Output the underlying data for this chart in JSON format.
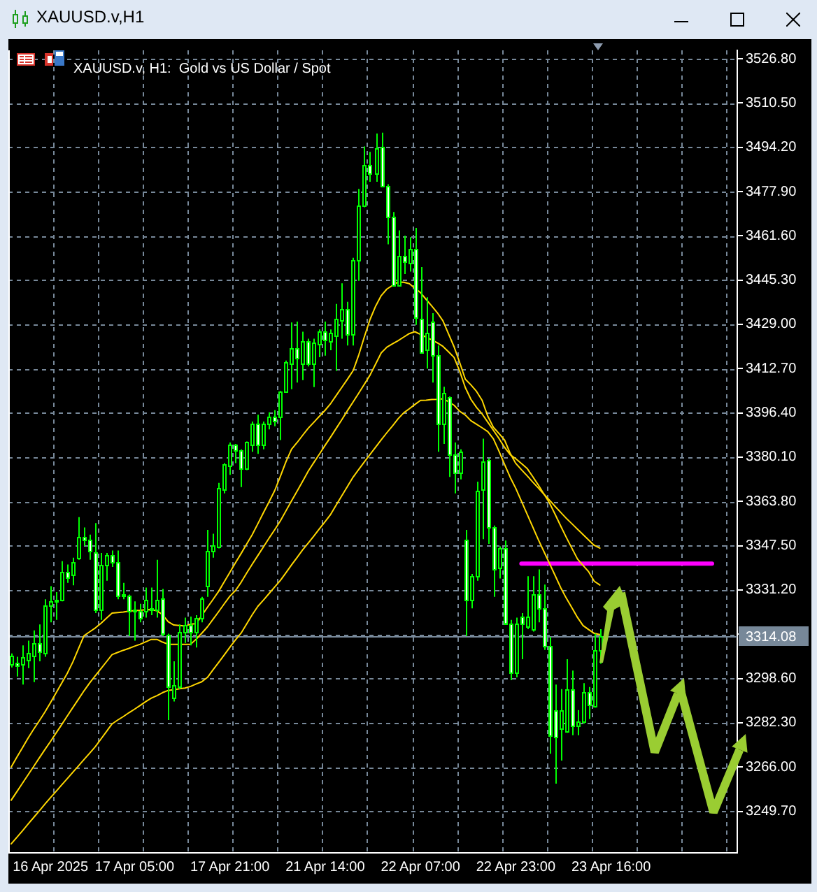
{
  "chart_data": {
    "type": "candlestick",
    "title": "XAUUSD.v,H1",
    "subtitle": "XAUUSD.v, H1:  Gold vs US Dollar / Spot",
    "categories": [
      null,
      null,
      null,
      null,
      null,
      null,
      null,
      "16 Apr 2025",
      null,
      null,
      null,
      null,
      null,
      null,
      null,
      null,
      null,
      null,
      null,
      null,
      null,
      null,
      "17 Apr 05:00",
      null,
      null,
      null,
      null,
      null,
      null,
      null,
      null,
      null,
      null,
      null,
      null,
      null,
      null,
      null,
      null,
      "17 Apr 21:00",
      null,
      null,
      null,
      null,
      null,
      null,
      null,
      null,
      null,
      null,
      null,
      null,
      null,
      null,
      null,
      null,
      "21 Apr 14:00",
      null,
      null,
      null,
      null,
      null,
      null,
      null,
      null,
      null,
      null,
      null,
      null,
      null,
      null,
      null,
      null,
      "22 Apr 07:00",
      null,
      null,
      null,
      null,
      null,
      null,
      null,
      null,
      null,
      null,
      null,
      null,
      null,
      null,
      null,
      null,
      "22 Apr 23:00",
      null,
      null,
      null,
      null,
      null,
      null,
      null,
      null,
      null,
      null,
      null,
      null,
      null,
      null,
      null,
      null,
      "23 Apr 16:00",
      null,
      null,
      null,
      null,
      null,
      null,
      null,
      null,
      null,
      null,
      null,
      null,
      null,
      null,
      null,
      null,
      null,
      null,
      null,
      null,
      null,
      null
    ],
    "ohlc": [
      [
        3303.7,
        3307.8,
        3302.7,
        3307.1
      ],
      [
        3304.4,
        3306.6,
        3299.3,
        3303.5
      ],
      [
        3304.0,
        3310.8,
        3296.4,
        3306.6
      ],
      [
        3305.7,
        3312.5,
        3302.4,
        3307.8
      ],
      [
        3307.1,
        3316.3,
        3297.3,
        3311.7
      ],
      [
        3311.7,
        3318.5,
        3304.9,
        3308.3
      ],
      [
        3307.8,
        3327.8,
        3306.6,
        3325.3
      ],
      [
        3325.3,
        3332.6,
        3319.3,
        3327.0
      ],
      [
        3327.8,
        3330.4,
        3320.2,
        3327.0
      ],
      [
        3327.8,
        3341.8,
        3327.0,
        3338.0
      ],
      [
        3338.0,
        3340.6,
        3333.8,
        3336.0
      ],
      [
        3336.7,
        3343.1,
        3332.9,
        3341.4
      ],
      [
        3343.1,
        3358.0,
        3342.3,
        3350.7
      ],
      [
        3350.7,
        3354.2,
        3347.4,
        3349.5
      ],
      [
        3349.9,
        3351.6,
        3342.3,
        3345.7
      ],
      [
        3345.3,
        3355.8,
        3322.7,
        3324.1
      ],
      [
        3324.1,
        3344.8,
        3320.2,
        3340.6
      ],
      [
        3340.6,
        3344.8,
        3334.6,
        3344.3
      ],
      [
        3344.0,
        3345.7,
        3339.7,
        3341.4
      ],
      [
        3341.4,
        3345.7,
        3327.8,
        3329.2
      ],
      [
        3329.2,
        3333.8,
        3327.8,
        3329.5
      ],
      [
        3329.2,
        3329.5,
        3314.2,
        3323.6
      ],
      [
        3323.6,
        3327.0,
        3312.5,
        3324.1
      ],
      [
        3323.6,
        3326.1,
        3319.3,
        3321.0
      ],
      [
        3323.6,
        3332.1,
        3321.0,
        3327.8
      ],
      [
        3324.4,
        3332.1,
        3321.9,
        3324.1
      ],
      [
        3324.1,
        3342.3,
        3321.0,
        3327.8
      ],
      [
        3328.2,
        3331.6,
        3314.2,
        3315.1
      ],
      [
        3314.6,
        3315.1,
        3283.3,
        3295.5
      ],
      [
        3291.3,
        3304.9,
        3290.1,
        3296.4
      ],
      [
        3295.5,
        3318.5,
        3294.7,
        3315.9
      ],
      [
        3315.9,
        3321.0,
        3311.7,
        3318.5
      ],
      [
        3318.5,
        3321.4,
        3310.8,
        3315.9
      ],
      [
        3315.9,
        3321.9,
        3310.0,
        3321.0
      ],
      [
        3320.7,
        3328.7,
        3319.3,
        3328.2
      ],
      [
        3332.9,
        3353.3,
        3328.7,
        3345.7
      ],
      [
        3345.6,
        3351.9,
        3343.1,
        3347.8
      ],
      [
        3347.3,
        3370.6,
        3346.5,
        3368.9
      ],
      [
        3368.5,
        3377.9,
        3366.8,
        3377.4
      ],
      [
        3377.0,
        3385.5,
        3373.6,
        3384.7
      ],
      [
        3384.7,
        3385.0,
        3377.9,
        3382.5
      ],
      [
        3382.5,
        3383.0,
        3369.1,
        3376.2
      ],
      [
        3376.2,
        3385.9,
        3375.3,
        3385.5
      ],
      [
        3384.7,
        3393.2,
        3382.1,
        3392.3
      ],
      [
        3392.3,
        3395.7,
        3381.3,
        3384.7
      ],
      [
        3384.7,
        3393.2,
        3383.0,
        3392.3
      ],
      [
        3392.3,
        3396.6,
        3390.3,
        3394.9
      ],
      [
        3394.9,
        3397.4,
        3391.5,
        3393.7
      ],
      [
        3394.9,
        3404.5,
        3386.4,
        3404.5
      ],
      [
        3404.2,
        3415.7,
        3404.2,
        3415.2
      ],
      [
        3414.4,
        3429.7,
        3405.1,
        3420.3
      ],
      [
        3420.3,
        3430.0,
        3407.6,
        3416.4
      ],
      [
        3414.4,
        3426.3,
        3408.5,
        3422.9
      ],
      [
        3422.9,
        3423.7,
        3413.5,
        3414.4
      ],
      [
        3414.4,
        3423.7,
        3405.9,
        3422.5
      ],
      [
        3422.0,
        3427.1,
        3416.9,
        3426.3
      ],
      [
        3426.3,
        3430.0,
        3417.5,
        3423.2
      ],
      [
        3423.0,
        3427.1,
        3419.5,
        3425.9
      ],
      [
        3424.9,
        3436.5,
        3411.9,
        3431.0
      ],
      [
        3430.5,
        3444.1,
        3423.7,
        3434.8
      ],
      [
        3434.8,
        3437.3,
        3421.2,
        3425.4
      ],
      [
        3425.4,
        3453.5,
        3421.2,
        3452.6
      ],
      [
        3452.6,
        3478.9,
        3445.0,
        3473.0
      ],
      [
        3472.5,
        3494.5,
        3472.1,
        3487.9
      ],
      [
        3487.9,
        3492.5,
        3481.5,
        3484.4
      ],
      [
        3484.4,
        3499.3,
        3481.5,
        3493.9
      ],
      [
        3494.2,
        3499.6,
        3479.8,
        3479.8
      ],
      [
        3479.8,
        3480.6,
        3458.5,
        3468.7
      ],
      [
        3468.7,
        3470.4,
        3443.3,
        3443.6
      ],
      [
        3443.6,
        3463.6,
        3443.3,
        3454.3
      ],
      [
        3454.3,
        3461.6,
        3447.5,
        3452.1
      ],
      [
        3451.8,
        3461.1,
        3448.4,
        3456.8
      ],
      [
        3456.8,
        3464.5,
        3428.8,
        3431.4
      ],
      [
        3431.0,
        3450.1,
        3418.6,
        3418.6
      ],
      [
        3419.5,
        3439.0,
        3412.7,
        3425.9
      ],
      [
        3430.2,
        3433.1,
        3407.6,
        3417.5
      ],
      [
        3417.8,
        3421.2,
        3382.1,
        3392.6
      ],
      [
        3392.6,
        3406.0,
        3385.0,
        3404.0
      ],
      [
        3402.0,
        3402.5,
        3372.8,
        3381.3
      ],
      [
        3381.3,
        3385.5,
        3366.8,
        3374.5
      ],
      [
        3374.5,
        3383.0,
        3371.9,
        3382.1
      ],
      [
        3349.9,
        3353.3,
        3314.2,
        3327.8
      ],
      [
        3327.8,
        3337.1,
        3324.4,
        3336.3
      ],
      [
        3336.3,
        3371.1,
        3334.6,
        3367.7
      ],
      [
        3368.5,
        3386.9,
        3349.9,
        3378.7
      ],
      [
        3379.1,
        3379.6,
        3348.2,
        3354.2
      ],
      [
        3354.2,
        3354.9,
        3328.7,
        3338.8
      ],
      [
        3339.2,
        3347.3,
        3335.4,
        3346.8
      ],
      [
        3346.5,
        3349.4,
        3319.0,
        3319.0
      ],
      [
        3319.0,
        3320.2,
        3298.0,
        3300.6
      ],
      [
        3300.6,
        3321.0,
        3299.0,
        3319.0
      ],
      [
        3321.4,
        3322.7,
        3305.7,
        3318.8
      ],
      [
        3317.6,
        3336.3,
        3316.8,
        3321.4
      ],
      [
        3316.8,
        3336.3,
        3315.9,
        3329.5
      ],
      [
        3329.8,
        3338.8,
        3319.3,
        3324.4
      ],
      [
        3324.4,
        3333.2,
        3309.1,
        3310.8
      ],
      [
        3310.8,
        3313.9,
        3270.9,
        3277.7
      ],
      [
        3287.0,
        3296.4,
        3259.9,
        3276.9
      ],
      [
        3280.3,
        3294.7,
        3268.4,
        3287.0
      ],
      [
        3279.4,
        3305.7,
        3278.6,
        3294.7
      ],
      [
        3294.7,
        3301.5,
        3277.7,
        3281.1
      ],
      [
        3281.1,
        3287.0,
        3277.7,
        3282.8
      ],
      [
        3282.8,
        3296.9,
        3282.0,
        3293.8
      ],
      [
        3293.8,
        3295.5,
        3283.7,
        3289.1
      ],
      [
        3288.4,
        3315.1,
        3287.9,
        3309.1
      ],
      [
        3309.1,
        3316.8,
        3304.0,
        3314.1
      ],
      null,
      null,
      null,
      null,
      null,
      null,
      null,
      null,
      null,
      null,
      null,
      null,
      null,
      null,
      null,
      null,
      null,
      null,
      null,
      null,
      null,
      null,
      null,
      null
    ],
    "color": "#00ff00",
    "colors": [
      "#000000",
      "#ffffff",
      "#000000",
      "#000000",
      "#000000",
      "#ffffff",
      "#000000",
      "#000000",
      "#ffffff",
      "#000000",
      "#ffffff",
      "#000000",
      "#000000",
      "#ffffff",
      "#ffffff",
      "#ffffff",
      "#000000",
      "#000000",
      "#ffffff",
      "#ffffff",
      "#000000",
      "#ffffff",
      "#000000",
      "#ffffff",
      "#000000",
      "#ffffff",
      "#000000",
      "#ffffff",
      "#ffffff",
      "#000000",
      "#000000",
      "#000000",
      "#ffffff",
      "#000000",
      "#000000",
      "#000000",
      "#000000",
      "#000000",
      "#000000",
      "#000000",
      "#ffffff",
      "#ffffff",
      "#000000",
      "#000000",
      "#ffffff",
      "#000000",
      "#000000",
      "#ffffff",
      "#000000",
      "#000000",
      "#000000",
      "#ffffff",
      "#000000",
      "#ffffff",
      "#000000",
      "#000000",
      "#ffffff",
      "#000000",
      "#000000",
      "#000000",
      "#ffffff",
      "#000000",
      "#000000",
      "#000000",
      "#ffffff",
      "#000000",
      "#ffffff",
      "#ffffff",
      "#ffffff",
      "#000000",
      "#ffffff",
      "#000000",
      "#ffffff",
      "#ffffff",
      "#000000",
      "#ffffff",
      "#ffffff",
      "#000000",
      "#ffffff",
      "#ffffff",
      "#000000",
      "#ffffff",
      "#000000",
      "#000000",
      "#000000",
      "#ffffff",
      "#ffffff",
      "#000000",
      "#ffffff",
      "#ffffff",
      "#000000",
      "#ffffff",
      "#000000",
      "#000000",
      "#ffffff",
      "#ffffff",
      "#ffffff",
      "#ffffff",
      "#000000",
      "#000000",
      "#ffffff",
      "#000000",
      "#000000",
      "#ffffff",
      "#000000",
      "#000000",
      null,
      null,
      null,
      null,
      null,
      null,
      null,
      null,
      null,
      null,
      null,
      null,
      null,
      null,
      null,
      null,
      null,
      null,
      null,
      null,
      null,
      null,
      null,
      null
    ],
    "series": [
      {
        "type": "line",
        "color": "#ffd700",
        "values": [
          3266.0,
          3269.6,
          3273.1,
          3276.6,
          3279.9,
          3283.0,
          3286.2,
          3289.7,
          3293.3,
          3296.9,
          3300.5,
          3304.7,
          3309.6,
          3314.4,
          3315.8,
          3317.2,
          3318.9,
          3320.8,
          3322.7,
          3322.9,
          3323.1,
          3323.4,
          3323.6,
          3323.7,
          3323.9,
          3324.0,
          3323.5,
          3322.1,
          3319.5,
          3318.3,
          3318.1,
          3317.9,
          3318.6,
          3318.8,
          3321.8,
          3324.8,
          3327.7,
          3330.7,
          3334.2,
          3337.7,
          3341.2,
          3344.6,
          3348.1,
          3351.6,
          3355.6,
          3359.7,
          3363.7,
          3367.8,
          3373.0,
          3378.4,
          3383.0,
          3385.5,
          3388.2,
          3390.8,
          3393.0,
          3395.2,
          3397.4,
          3399.9,
          3402.9,
          3405.9,
          3408.9,
          3412.0,
          3417.8,
          3424.5,
          3430.8,
          3435.7,
          3439.6,
          3442.0,
          3443.3,
          3444.6,
          3444.5,
          3444.0,
          3442.3,
          3440.7,
          3438.2,
          3435.8,
          3433.3,
          3430.3,
          3425.5,
          3420.7,
          3414.9,
          3408.8,
          3406.7,
          3404.3,
          3401.0,
          3395.2,
          3391.1,
          3388.8,
          3386.4,
          3381.5,
          3377.8,
          3375.5,
          3373.3,
          3371.0,
          3368.8,
          3366.5,
          3364.3,
          3362.0,
          3359.8,
          3357.6,
          3355.6,
          3353.6,
          3351.6,
          3349.6,
          3347.6,
          3346.6,
          null,
          null,
          null,
          null,
          null,
          null,
          null,
          null,
          null,
          null,
          null,
          null,
          null,
          null,
          null,
          null,
          null,
          null,
          null,
          null,
          null,
          null,
          null,
          null
        ]
      },
      {
        "type": "line",
        "color": "#ffd700",
        "values": [
          3253.8,
          3256.9,
          3260.0,
          3263.1,
          3266.2,
          3269.3,
          3272.4,
          3275.4,
          3278.5,
          3281.6,
          3284.8,
          3287.9,
          3291.0,
          3294.1,
          3297.0,
          3299.6,
          3302.2,
          3304.8,
          3307.4,
          3308.2,
          3309.0,
          3309.7,
          3310.5,
          3311.2,
          3312.1,
          3313.0,
          3313.0,
          3312.0,
          3311.2,
          3311.2,
          3311.2,
          3311.2,
          3311.2,
          3313.1,
          3315.3,
          3317.6,
          3320.4,
          3323.2,
          3326.1,
          3328.9,
          3331.0,
          3334.0,
          3337.4,
          3340.7,
          3343.9,
          3347.1,
          3350.3,
          3353.4,
          3356.6,
          3360.3,
          3364.0,
          3367.6,
          3371.3,
          3375.0,
          3378.2,
          3381.3,
          3384.5,
          3387.6,
          3390.8,
          3394.0,
          3397.3,
          3400.5,
          3403.7,
          3407.0,
          3410.3,
          3414.4,
          3418.5,
          3420.6,
          3421.8,
          3423.0,
          3424.3,
          3425.6,
          3426.3,
          3425.3,
          3424.3,
          3423.3,
          3422.2,
          3420.9,
          3418.9,
          3416.8,
          3411.7,
          3405.7,
          3401.4,
          3398.4,
          3396.0,
          3393.0,
          3390.0,
          3387.0,
          3383.7,
          3381.0,
          3379.5,
          3377.8,
          3376.0,
          3373.0,
          3369.9,
          3366.6,
          3363.3,
          3359.1,
          3354.8,
          3350.6,
          3346.6,
          3342.6,
          3340.2,
          3337.9,
          3334.4,
          3333.0,
          null,
          null,
          null,
          null,
          null,
          null,
          null,
          null,
          null,
          null,
          null,
          null,
          null,
          null,
          null,
          null,
          null,
          null,
          null,
          null,
          null,
          null,
          null,
          null
        ]
      },
      {
        "type": "line",
        "color": "#ffd700",
        "values": [
          3237.7,
          3240.1,
          3242.5,
          3245.0,
          3247.4,
          3249.8,
          3252.3,
          3254.7,
          3257.0,
          3259.4,
          3261.7,
          3264.1,
          3266.4,
          3268.8,
          3271.1,
          3273.5,
          3276.3,
          3279.1,
          3281.9,
          3283.3,
          3284.6,
          3286.0,
          3287.3,
          3288.7,
          3290.1,
          3291.4,
          3292.3,
          3293.4,
          3294.2,
          3294.5,
          3294.8,
          3295.1,
          3295.7,
          3296.6,
          3297.4,
          3299.0,
          3301.8,
          3304.5,
          3307.3,
          3310.1,
          3312.8,
          3315.3,
          3318.7,
          3322.1,
          3325.2,
          3327.5,
          3329.9,
          3332.3,
          3334.7,
          3337.5,
          3340.4,
          3343.2,
          3346.0,
          3348.5,
          3351.1,
          3353.8,
          3356.4,
          3359.1,
          3362.6,
          3366.0,
          3369.4,
          3372.8,
          3375.6,
          3378.4,
          3381.1,
          3383.8,
          3386.5,
          3389.1,
          3391.6,
          3394.2,
          3396.4,
          3397.9,
          3399.5,
          3401.0,
          3401.1,
          3401.3,
          3401.4,
          3401.6,
          3400.5,
          3399.2,
          3397.0,
          3395.6,
          3393.5,
          3392.2,
          3390.9,
          3389.5,
          3386.9,
          3382.3,
          3377.4,
          3372.7,
          3368.6,
          3363.9,
          3359.2,
          3354.5,
          3349.8,
          3345.4,
          3341.0,
          3336.6,
          3332.1,
          3328.2,
          3324.7,
          3321.1,
          3318.1,
          3316.6,
          3315.2,
          3314.8,
          null,
          null,
          null,
          null,
          null,
          null,
          null,
          null,
          null,
          null,
          null,
          null,
          null,
          null,
          null,
          null,
          null,
          null,
          null,
          null,
          null,
          null,
          null,
          null
        ]
      },
      {
        "type": "line",
        "color": "#ff00ff",
        "values": [
          null,
          null,
          null,
          null,
          null,
          null,
          null,
          null,
          null,
          null,
          null,
          null,
          null,
          null,
          null,
          null,
          null,
          null,
          null,
          null,
          null,
          null,
          null,
          null,
          null,
          null,
          null,
          null,
          null,
          null,
          null,
          null,
          null,
          null,
          null,
          null,
          null,
          null,
          null,
          null,
          null,
          null,
          null,
          null,
          null,
          null,
          null,
          null,
          null,
          null,
          null,
          null,
          null,
          null,
          null,
          null,
          null,
          null,
          null,
          null,
          null,
          null,
          null,
          null,
          null,
          null,
          null,
          null,
          null,
          null,
          null,
          null,
          null,
          null,
          null,
          null,
          null,
          null,
          null,
          null,
          null,
          null,
          null,
          null,
          null,
          null,
          null,
          null,
          null,
          null,
          null,
          3340.9,
          3340.9,
          3340.9,
          3340.9,
          3340.9,
          3340.9,
          3340.9,
          3340.9,
          3340.9,
          3340.9,
          3340.9,
          3340.9,
          3340.9,
          3340.9,
          3340.9,
          3340.9,
          3340.9,
          3340.9,
          3340.9,
          3340.9,
          3340.9,
          3340.9,
          3340.9,
          3340.9,
          3340.9,
          3340.9,
          3340.9,
          3340.9,
          3340.9,
          3340.9,
          3340.9,
          3340.9,
          3340.9,
          3340.9,
          3340.9,
          null,
          null,
          null,
          null
        ]
      }
    ],
    "ylim": [
      3234.4,
      3529.9
    ],
    "yticks": [
      {
        "value": 3249.7,
        "label": "3249.70"
      },
      {
        "value": 3266.0,
        "label": "3266.00"
      },
      {
        "value": 3282.3,
        "label": "3282.30"
      },
      {
        "value": 3298.6,
        "label": "3298.60"
      },
      {
        "value": 3314.9,
        "label": null
      },
      {
        "value": 3331.2,
        "label": "3331.20"
      },
      {
        "value": 3347.5,
        "label": "3347.50"
      },
      {
        "value": 3363.8,
        "label": "3363.80"
      },
      {
        "value": 3380.1,
        "label": "3380.10"
      },
      {
        "value": 3396.4,
        "label": "3396.40"
      },
      {
        "value": 3412.7,
        "label": "3412.70"
      },
      {
        "value": 3429.0,
        "label": "3429.00"
      },
      {
        "value": 3445.3,
        "label": "3445.30"
      },
      {
        "value": 3461.6,
        "label": "3461.60"
      },
      {
        "value": 3477.9,
        "label": "3477.90"
      },
      {
        "value": 3494.2,
        "label": "3494.20"
      },
      {
        "value": 3510.5,
        "label": "3510.50"
      },
      {
        "value": 3526.8,
        "label": "3526.80"
      }
    ],
    "grid": true,
    "ref_lines": [
      {
        "axis": "y",
        "value": 3314.08,
        "label": "3314.08",
        "color": "#778899"
      }
    ]
  }
}
